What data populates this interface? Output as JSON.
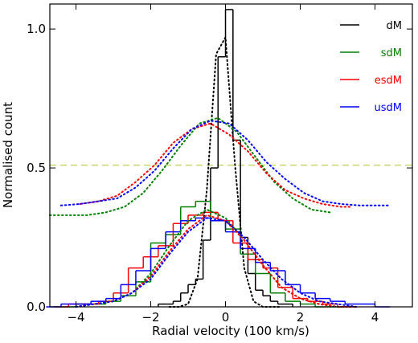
{
  "chart_data": {
    "type": "histogram",
    "xlabel": "Radial velocity (100 km/s)",
    "ylabel": "Normalised count",
    "xlim": [
      -4.7,
      5.0
    ],
    "ylim": [
      0,
      1.09
    ],
    "xticks": [
      {
        "value": -4,
        "label": "−4"
      },
      {
        "value": -2,
        "label": "−2"
      },
      0,
      2,
      4
    ],
    "yticks": [
      {
        "value": 0,
        "label": "0.0"
      },
      {
        "value": 0.5,
        "label": "0.5"
      },
      {
        "value": 1,
        "label": "1.0"
      }
    ],
    "legend": "upper right",
    "hline": {
      "value": 0.51,
      "color": "#c8d86a"
    },
    "series": [
      {
        "name": "dM",
        "color": "#000000",
        "bins": [
          -1.8,
          -1.6,
          -1.4,
          -1.2,
          -1.0,
          -0.8,
          -0.6,
          -0.4,
          -0.2,
          0,
          0.2,
          0.4,
          0.6,
          0.8,
          1.0,
          1.2,
          1.4,
          1.6,
          1.8
        ],
        "values": [
          0.01,
          0.01,
          0.02,
          0.05,
          0.08,
          0.1,
          0.24,
          0.5,
          0.9,
          1.07,
          0.6,
          0.25,
          0.12,
          0.06,
          0.04,
          0.02,
          0.01,
          0.01
        ]
      },
      {
        "name": "sdM",
        "color": "#008000",
        "bins": [
          -4.4,
          -4.0,
          -3.6,
          -3.2,
          -2.8,
          -2.4,
          -2.0,
          -1.6,
          -1.2,
          -0.8,
          -0.4,
          0,
          0.4,
          0.8,
          1.2,
          1.6,
          2.0,
          2.4,
          2.8,
          3.2
        ],
        "values": [
          0.0,
          0.01,
          0.01,
          0.02,
          0.04,
          0.09,
          0.23,
          0.26,
          0.36,
          0.38,
          0.31,
          0.28,
          0.19,
          0.12,
          0.05,
          0.02,
          0.01,
          0.0,
          0.0
        ]
      },
      {
        "name": "esdM",
        "color": "#ff0000",
        "bins": [
          -4.6,
          -4.2,
          -3.8,
          -3.4,
          -3.0,
          -2.6,
          -2.2,
          -1.8,
          -1.4,
          -1.0,
          -0.6,
          -0.2,
          0.2,
          0.6,
          1.0,
          1.4,
          1.8,
          2.2,
          2.6,
          3.0,
          3.4
        ],
        "values": [
          0.0,
          0.01,
          0.01,
          0.02,
          0.05,
          0.14,
          0.18,
          0.22,
          0.3,
          0.33,
          0.34,
          0.31,
          0.23,
          0.17,
          0.14,
          0.07,
          0.03,
          0.02,
          0.01,
          0.0
        ]
      },
      {
        "name": "usdM",
        "color": "#0000ff",
        "bins": [
          -4.8,
          -4.4,
          -4.0,
          -3.6,
          -3.2,
          -2.8,
          -2.4,
          -2.0,
          -1.6,
          -1.2,
          -0.8,
          -0.4,
          0,
          0.4,
          0.8,
          1.2,
          1.6,
          2.0,
          2.4,
          2.8,
          3.2,
          3.6,
          4.0,
          4.4
        ],
        "values": [
          0.0,
          0.01,
          0.01,
          0.02,
          0.03,
          0.08,
          0.13,
          0.21,
          0.27,
          0.31,
          0.32,
          0.31,
          0.27,
          0.21,
          0.16,
          0.13,
          0.08,
          0.05,
          0.03,
          0.02,
          0.01,
          0.01,
          0.0
        ]
      }
    ],
    "fits": [
      {
        "color": "#000000",
        "x": [
          -1.5,
          -1.25,
          -1.0,
          -0.75,
          -0.5,
          -0.25,
          0,
          0.25,
          0.5,
          0.75,
          1.0,
          1.25,
          1.5
        ],
        "values": [
          0.0,
          0.0,
          0.01,
          0.1,
          0.42,
          0.91,
          0.97,
          0.52,
          0.14,
          0.02,
          0.0,
          0.0,
          0.0
        ]
      },
      {
        "color": "#008000",
        "x": [
          -4,
          -3.5,
          -3,
          -2.5,
          -2,
          -1.5,
          -1,
          -0.5,
          0,
          0.5,
          1,
          1.5,
          2,
          2.5,
          3,
          3.5
        ],
        "values": [
          0.0,
          0.01,
          0.02,
          0.05,
          0.12,
          0.22,
          0.31,
          0.35,
          0.32,
          0.24,
          0.15,
          0.07,
          0.03,
          0.01,
          0.0,
          0.0
        ]
      },
      {
        "color": "#ff0000",
        "x": [
          -4,
          -3.5,
          -3,
          -2.5,
          -2,
          -1.5,
          -1,
          -0.5,
          0,
          0.5,
          1,
          1.5,
          2,
          2.5,
          3,
          3.5
        ],
        "values": [
          0.0,
          0.01,
          0.02,
          0.05,
          0.11,
          0.2,
          0.28,
          0.33,
          0.31,
          0.24,
          0.15,
          0.07,
          0.03,
          0.01,
          0.0,
          0.0
        ]
      },
      {
        "color": "#0000ff",
        "x": [
          -4,
          -3.5,
          -3,
          -2.5,
          -2,
          -1.5,
          -1,
          -0.5,
          0,
          0.5,
          1,
          1.5,
          2,
          2.5,
          3,
          3.5
        ],
        "values": [
          0.0,
          0.01,
          0.02,
          0.05,
          0.1,
          0.19,
          0.27,
          0.32,
          0.31,
          0.25,
          0.17,
          0.1,
          0.05,
          0.02,
          0.01,
          0.0
        ]
      },
      {
        "color": "#008000",
        "x": [
          -4.7,
          -4.2,
          -3.7,
          -3.2,
          -2.7,
          -2.2,
          -1.7,
          -1.2,
          -0.7,
          -0.2,
          0.3,
          0.8,
          1.3,
          1.8,
          2.3,
          2.8
        ],
        "values": [
          0.33,
          0.33,
          0.33,
          0.34,
          0.36,
          0.41,
          0.49,
          0.58,
          0.66,
          0.68,
          0.63,
          0.54,
          0.45,
          0.39,
          0.35,
          0.34
        ]
      },
      {
        "color": "#ff0000",
        "x": [
          -3.9,
          -3.4,
          -2.9,
          -2.4,
          -1.9,
          -1.4,
          -0.9,
          -0.4,
          0.1,
          0.6,
          1.1,
          1.6,
          2.1,
          2.6,
          3.1,
          3.4
        ],
        "values": [
          0.37,
          0.38,
          0.4,
          0.45,
          0.51,
          0.59,
          0.64,
          0.66,
          0.62,
          0.56,
          0.48,
          0.42,
          0.39,
          0.37,
          0.36,
          0.36
        ]
      },
      {
        "color": "#0000ff",
        "x": [
          -4.4,
          -3.9,
          -3.4,
          -2.9,
          -2.4,
          -1.9,
          -1.4,
          -0.9,
          -0.4,
          0.1,
          0.6,
          1.1,
          1.6,
          2.1,
          2.6,
          3.1,
          3.6,
          4.1,
          4.4
        ],
        "values": [
          0.365,
          0.37,
          0.38,
          0.39,
          0.43,
          0.49,
          0.57,
          0.64,
          0.67,
          0.66,
          0.6,
          0.52,
          0.46,
          0.41,
          0.38,
          0.37,
          0.365,
          0.365,
          0.365
        ]
      }
    ]
  }
}
